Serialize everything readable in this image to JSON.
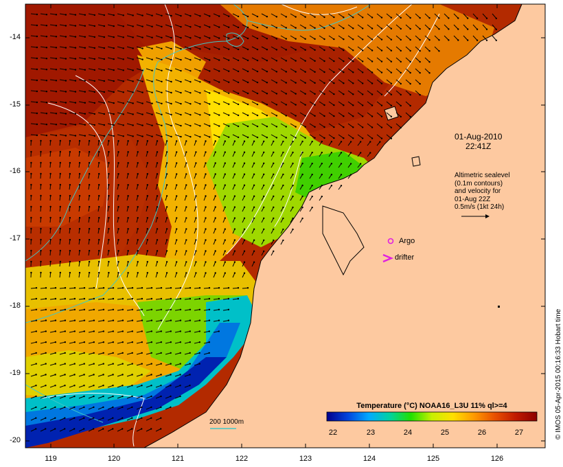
{
  "map": {
    "lat_ticks": [
      "-14",
      "-15",
      "-16",
      "-17",
      "-18",
      "-19",
      "-20"
    ],
    "lon_ticks": [
      "119",
      "120",
      "121",
      "122",
      "123",
      "124",
      "125",
      "126"
    ],
    "timestamp_line1": "01-Aug-2010",
    "timestamp_line2": "22:41Z",
    "altimetry_lines": [
      "Altimetric sealevel",
      "(0.1m contours)",
      "and velocity for",
      "01-Aug 22Z",
      "0.5m/s (1kt 24h)"
    ],
    "legend_argo": "Argo",
    "legend_drifter": "drifter",
    "depth_contour_label": "200  1000m",
    "colors": {
      "land": "#fdc9a0",
      "coast": "#000000",
      "argo": "#e020e0",
      "drifter": "#e020e0",
      "bathymetry": "#40c8c8"
    }
  },
  "colorbar": {
    "title": "Temperature (°C) NOAA16_L3U 11% ql>=4",
    "ticks": [
      "22",
      "23",
      "24",
      "25",
      "26",
      "27"
    ],
    "colors": [
      "#00008c",
      "#0044dd",
      "#00aaff",
      "#00d2a0",
      "#20e000",
      "#c8f000",
      "#ffe000",
      "#ff9a00",
      "#e85000",
      "#c01a00",
      "#8c0000"
    ]
  },
  "credit": "© IMOS 05-Apr-2015 00:16:33 Hobart time"
}
